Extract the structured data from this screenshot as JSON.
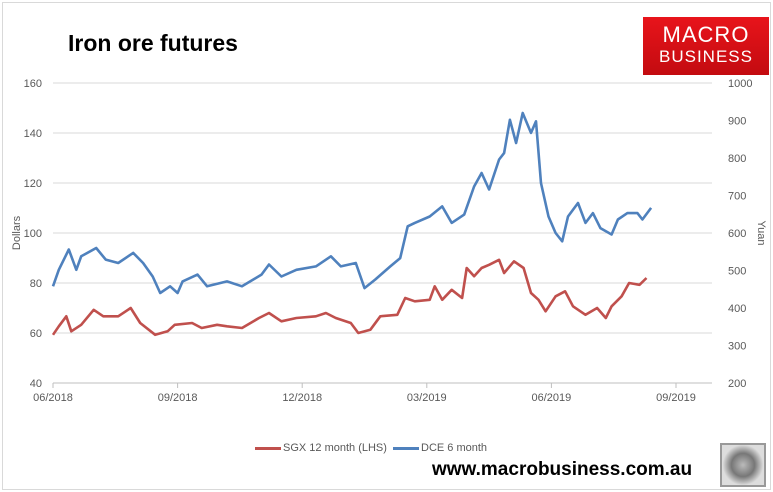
{
  "title": "Iron ore futures",
  "logo": {
    "line1": "MACRO",
    "line2": "BUSINESS"
  },
  "url": "www.macrobusiness.com.au",
  "chart_data": {
    "type": "line",
    "title": "Iron ore futures",
    "xlabel": "",
    "ylabel": "Dollars",
    "y2label": "Yuan",
    "x_unit": "months since 06/2018",
    "xlim": [
      0,
      15
    ],
    "x_ticks": [
      0,
      3,
      6,
      9,
      12,
      15
    ],
    "x_tick_labels": [
      "06/2018",
      "09/2018",
      "12/2018",
      "03/2019",
      "06/2019",
      "09/2019"
    ],
    "ylim": [
      40,
      160
    ],
    "y_ticks": [
      40,
      60,
      80,
      100,
      120,
      140,
      160
    ],
    "y2lim": [
      200,
      1000
    ],
    "y2_ticks": [
      200,
      300,
      400,
      500,
      600,
      700,
      800,
      900,
      1000
    ],
    "grid": true,
    "legend_position": "bottom",
    "series": [
      {
        "name": "SGX 12 month (LHS)",
        "axis": "left",
        "color": "#c0504d",
        "x": [
          0,
          0.14,
          0.32,
          0.44,
          0.68,
          0.98,
          1.21,
          1.57,
          1.87,
          2.1,
          2.46,
          2.76,
          2.93,
          3.35,
          3.58,
          3.95,
          4.19,
          4.55,
          4.96,
          5.2,
          5.5,
          5.86,
          6.33,
          6.57,
          6.81,
          7.17,
          7.35,
          7.64,
          7.88,
          8.29,
          8.48,
          8.71,
          9.07,
          9.19,
          9.37,
          9.6,
          9.85,
          9.96,
          10.14,
          10.32,
          10.5,
          10.74,
          10.86,
          11.1,
          11.33,
          11.51,
          11.69,
          11.86,
          12.1,
          12.33,
          12.52,
          12.82,
          13.1,
          13.31,
          13.45,
          13.69,
          13.87,
          14.12,
          14.29
        ],
        "values": [
          59.3,
          62.7,
          66.7,
          60.7,
          63.3,
          69.3,
          66.7,
          66.7,
          70,
          64,
          59.3,
          60.7,
          63.3,
          64,
          62,
          63.3,
          62.7,
          62,
          66,
          68,
          64.7,
          66,
          66.7,
          68,
          66,
          64,
          60,
          61.3,
          66.7,
          67.3,
          74,
          72.7,
          73.3,
          78.7,
          73.3,
          77.3,
          74,
          86,
          82.7,
          86,
          87.3,
          89.3,
          84,
          88.7,
          86,
          76,
          73.3,
          68.7,
          74.7,
          76.7,
          70.7,
          67.3,
          70,
          66,
          70.7,
          74.7,
          80,
          79.3,
          82
        ]
      },
      {
        "name": "DCE 6 month",
        "axis": "right",
        "color": "#4f81bd",
        "x": [
          0,
          0.14,
          0.38,
          0.56,
          0.68,
          1.04,
          1.27,
          1.57,
          1.93,
          2.17,
          2.4,
          2.58,
          2.82,
          3.0,
          3.12,
          3.48,
          3.71,
          4.19,
          4.55,
          5.02,
          5.2,
          5.5,
          5.86,
          6.33,
          6.69,
          6.93,
          7.29,
          7.5,
          7.76,
          8.12,
          8.36,
          8.54,
          8.71,
          9.07,
          9.37,
          9.6,
          9.9,
          10.14,
          10.32,
          10.5,
          10.74,
          10.86,
          11.0,
          11.15,
          11.31,
          11.51,
          11.63,
          11.75,
          11.93,
          12.1,
          12.26,
          12.4,
          12.64,
          12.82,
          13.0,
          13.18,
          13.45,
          13.6,
          13.83,
          14.07,
          14.19,
          14.4
        ],
        "values": [
          458,
          502,
          556,
          502,
          538,
          560,
          529,
          520,
          547,
          520,
          484,
          440,
          458,
          440,
          471,
          489,
          458,
          471,
          458,
          489,
          516,
          484,
          502,
          511,
          538,
          511,
          520,
          453,
          476,
          511,
          533,
          618,
          627,
          644,
          671,
          627,
          649,
          724,
          760,
          716,
          796,
          813,
          902,
          840,
          920,
          867,
          898,
          733,
          644,
          600,
          578,
          644,
          680,
          627,
          653,
          613,
          596,
          636,
          653,
          653,
          636,
          667
        ]
      }
    ]
  }
}
